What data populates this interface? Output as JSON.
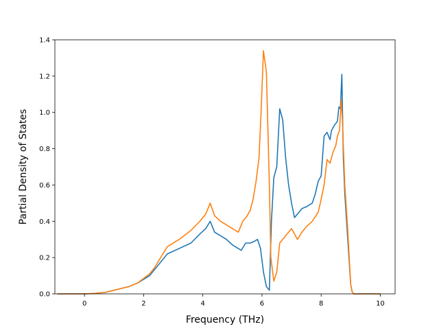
{
  "chart_data": {
    "type": "line",
    "title": "",
    "xlabel": "Frequency (THz)",
    "ylabel": "Partial Density of States",
    "xlim": [
      -1.0,
      10.5
    ],
    "ylim": [
      0.0,
      1.4
    ],
    "xticks": [
      0,
      2,
      4,
      6,
      8,
      10
    ],
    "yticks": [
      0.0,
      0.2,
      0.4,
      0.6,
      0.8,
      1.0,
      1.2,
      1.4
    ],
    "grid": false,
    "legend": false,
    "series": [
      {
        "color": "#1f77b4",
        "x": [
          -0.92,
          0.0,
          0.3,
          0.7,
          1.0,
          1.2,
          1.5,
          1.8,
          2.0,
          2.2,
          2.35,
          2.5,
          2.8,
          3.2,
          3.6,
          3.9,
          4.1,
          4.25,
          4.4,
          4.6,
          4.8,
          5.0,
          5.2,
          5.3,
          5.45,
          5.6,
          5.75,
          5.85,
          5.95,
          6.05,
          6.15,
          6.25,
          6.32,
          6.4,
          6.5,
          6.6,
          6.7,
          6.8,
          6.9,
          7.0,
          7.1,
          7.25,
          7.35,
          7.5,
          7.7,
          7.8,
          7.9,
          8.0,
          8.1,
          8.2,
          8.3,
          8.35,
          8.45,
          8.55,
          8.6,
          8.65,
          8.7,
          8.75,
          8.8,
          8.9,
          9.0,
          9.05,
          9.1,
          9.2,
          10.0
        ],
        "y": [
          0.0,
          0.0,
          0.002,
          0.008,
          0.02,
          0.028,
          0.04,
          0.06,
          0.08,
          0.1,
          0.13,
          0.16,
          0.22,
          0.25,
          0.28,
          0.33,
          0.36,
          0.4,
          0.34,
          0.32,
          0.3,
          0.27,
          0.25,
          0.24,
          0.28,
          0.28,
          0.29,
          0.3,
          0.25,
          0.12,
          0.04,
          0.02,
          0.4,
          0.64,
          0.7,
          1.02,
          0.96,
          0.75,
          0.6,
          0.5,
          0.42,
          0.45,
          0.47,
          0.48,
          0.5,
          0.55,
          0.62,
          0.65,
          0.87,
          0.89,
          0.85,
          0.9,
          0.93,
          0.95,
          1.03,
          1.02,
          1.21,
          0.75,
          0.55,
          0.3,
          0.05,
          0.01,
          0.0,
          0.0,
          0.0
        ]
      },
      {
        "color": "#ff7f0e",
        "x": [
          -0.92,
          0.0,
          0.3,
          0.7,
          1.0,
          1.2,
          1.5,
          1.8,
          2.0,
          2.2,
          2.35,
          2.5,
          2.8,
          3.2,
          3.6,
          3.9,
          4.1,
          4.25,
          4.4,
          4.6,
          4.8,
          5.0,
          5.2,
          5.35,
          5.5,
          5.6,
          5.7,
          5.8,
          5.9,
          5.97,
          6.05,
          6.15,
          6.25,
          6.3,
          6.4,
          6.5,
          6.6,
          6.8,
          7.0,
          7.2,
          7.35,
          7.5,
          7.7,
          7.9,
          8.0,
          8.1,
          8.2,
          8.3,
          8.4,
          8.5,
          8.55,
          8.62,
          8.68,
          8.72,
          8.8,
          8.9,
          9.0,
          9.05,
          9.1,
          9.2,
          10.0
        ],
        "y": [
          0.0,
          0.0,
          0.002,
          0.008,
          0.02,
          0.028,
          0.04,
          0.06,
          0.085,
          0.11,
          0.14,
          0.18,
          0.26,
          0.3,
          0.35,
          0.4,
          0.44,
          0.5,
          0.43,
          0.4,
          0.38,
          0.36,
          0.34,
          0.4,
          0.43,
          0.46,
          0.52,
          0.62,
          0.75,
          1.0,
          1.34,
          1.22,
          0.6,
          0.2,
          0.07,
          0.12,
          0.28,
          0.32,
          0.36,
          0.3,
          0.34,
          0.37,
          0.4,
          0.45,
          0.52,
          0.6,
          0.74,
          0.72,
          0.78,
          0.82,
          0.87,
          0.9,
          1.07,
          0.95,
          0.6,
          0.35,
          0.05,
          0.01,
          0.0,
          0.0,
          0.0
        ]
      }
    ]
  }
}
